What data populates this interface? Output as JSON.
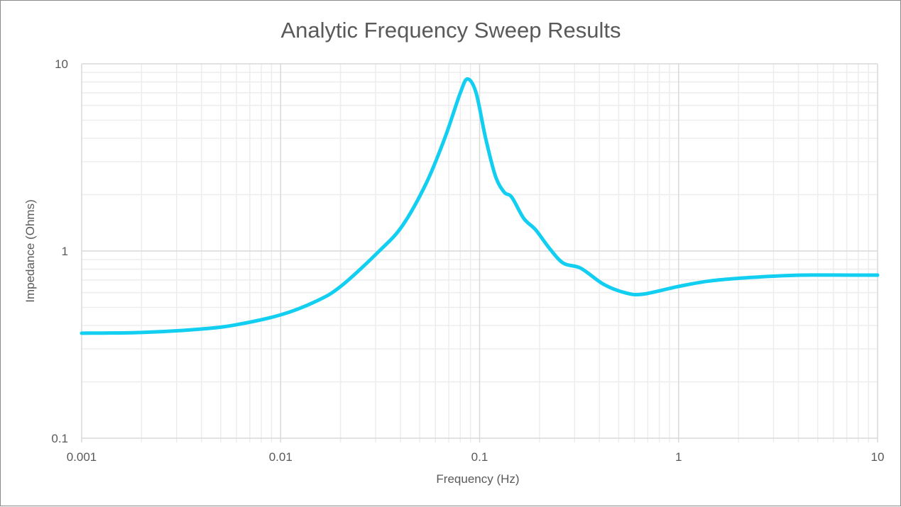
{
  "chart_data": {
    "type": "line",
    "title": "Analytic Frequency Sweep Results",
    "xlabel": "Frequency (Hz)",
    "ylabel": "Impedance (Ohms)",
    "x_scale": "log",
    "y_scale": "log",
    "xlim": [
      0.001,
      10
    ],
    "ylim": [
      0.1,
      10
    ],
    "x_ticks": [
      "0.001",
      "0.01",
      "0.1",
      "1",
      "10"
    ],
    "y_ticks": [
      "0.1",
      "1",
      "10"
    ],
    "grid": true,
    "line_color": "#12CFF2",
    "series": [
      {
        "x": [
          0.001,
          0.002,
          0.004,
          0.006,
          0.01,
          0.015,
          0.02,
          0.0313,
          0.041,
          0.054,
          0.067,
          0.08,
          0.087,
          0.096,
          0.107,
          0.12,
          0.133,
          0.145,
          0.167,
          0.191,
          0.225,
          0.264,
          0.322,
          0.42,
          0.54,
          0.66,
          1,
          1.45,
          2.4,
          4.2,
          10
        ],
        "y": [
          0.364,
          0.367,
          0.383,
          0.404,
          0.456,
          0.538,
          0.646,
          1.0,
          1.37,
          2.31,
          4.04,
          7.0,
          8.3,
          7.0,
          4.04,
          2.52,
          2.06,
          1.94,
          1.49,
          1.3,
          1.03,
          0.86,
          0.81,
          0.664,
          0.598,
          0.588,
          0.647,
          0.693,
          0.724,
          0.743,
          0.743
        ]
      }
    ]
  }
}
